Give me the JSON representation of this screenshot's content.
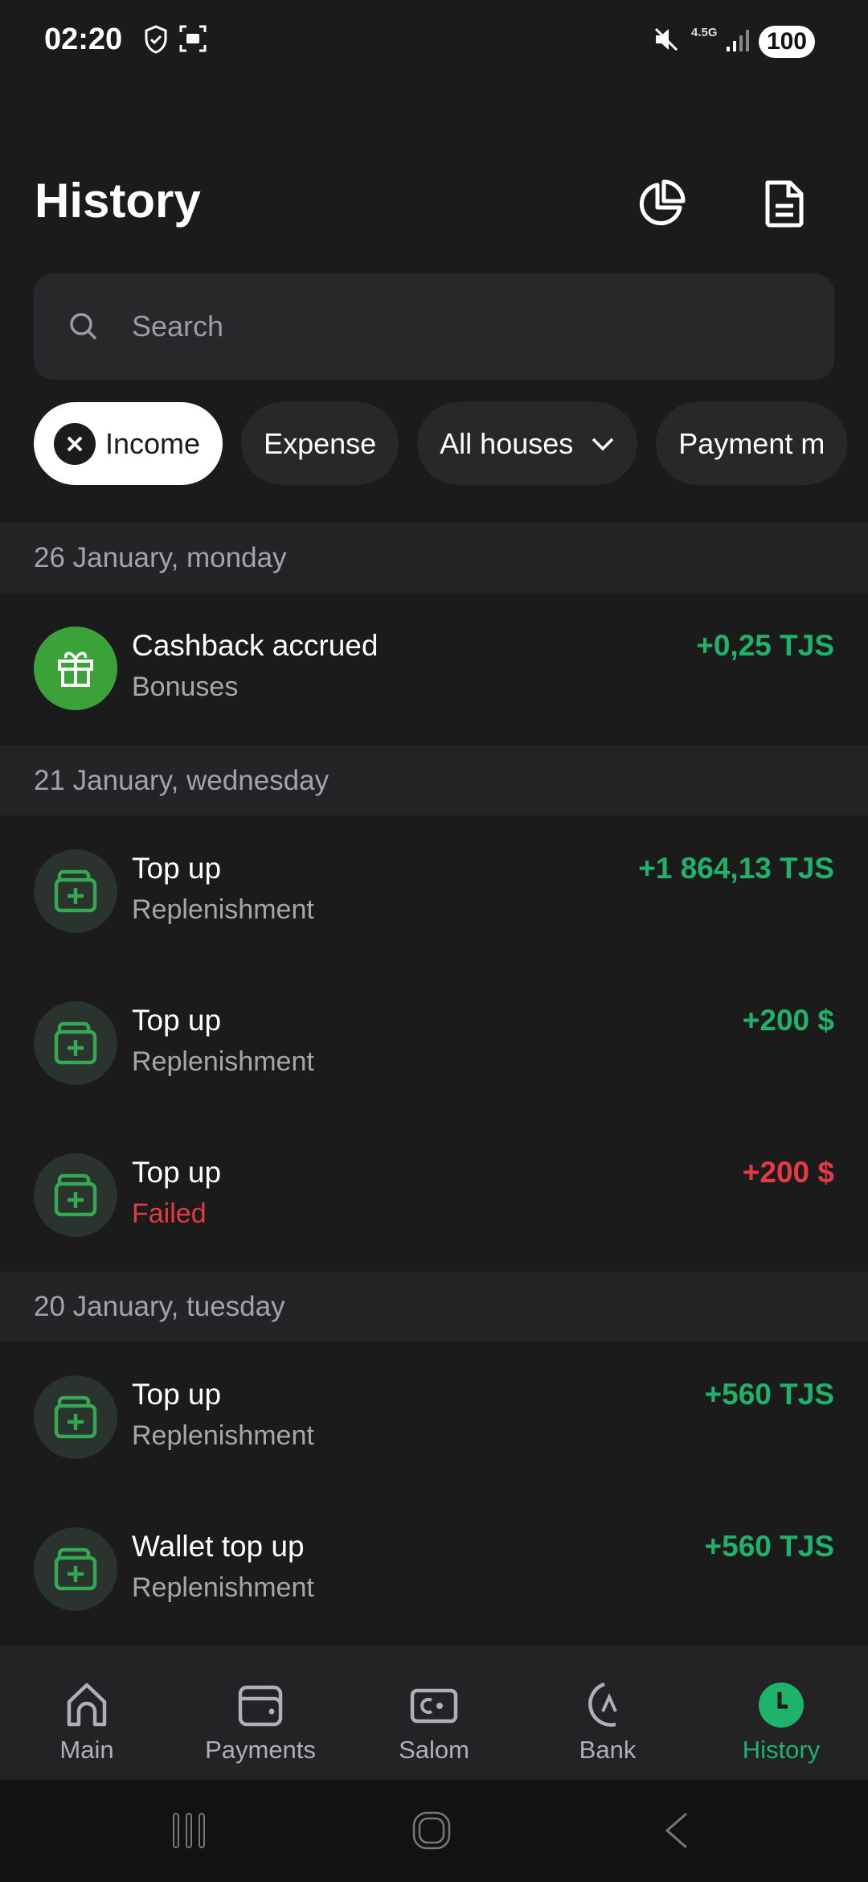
{
  "status": {
    "time": "02:20",
    "network": "4.5G",
    "battery": "100"
  },
  "header": {
    "title": "History",
    "icons": [
      "pie-chart-icon",
      "document-icon"
    ]
  },
  "search": {
    "placeholder": "Search"
  },
  "filters": [
    {
      "label": "Income",
      "active": true
    },
    {
      "label": "Expense"
    },
    {
      "label": "All houses"
    },
    {
      "label": "Payment m"
    }
  ],
  "groups": [
    {
      "date": "26 January, monday",
      "items": [
        {
          "title": "Cashback accrued",
          "subtitle": "Bonuses",
          "amount": "+0,25 TJS",
          "icon": "gift-icon",
          "status": "ok"
        }
      ]
    },
    {
      "date": "21 January, wednesday",
      "items": [
        {
          "title": "Top up",
          "subtitle": "Replenishment",
          "amount": "+1 864,13 TJS",
          "icon": "wallet-plus-icon",
          "status": "ok"
        },
        {
          "title": "Top up",
          "subtitle": "Replenishment",
          "amount": "+200 $",
          "icon": "wallet-plus-icon",
          "status": "ok"
        },
        {
          "title": "Top up",
          "subtitle": "Failed",
          "amount": "+200 $",
          "icon": "wallet-plus-icon",
          "status": "failed"
        }
      ]
    },
    {
      "date": "20 January, tuesday",
      "items": [
        {
          "title": "Top up",
          "subtitle": "Replenishment",
          "amount": "+560 TJS",
          "icon": "wallet-plus-icon",
          "status": "ok"
        },
        {
          "title": "Wallet top up",
          "subtitle": "Replenishment",
          "amount": "+560 TJS",
          "icon": "wallet-plus-icon",
          "status": "ok"
        }
      ]
    }
  ],
  "nav": [
    {
      "label": "Main"
    },
    {
      "label": "Payments"
    },
    {
      "label": "Salom"
    },
    {
      "label": "Bank"
    },
    {
      "label": "History",
      "active": true
    }
  ],
  "colors": {
    "positive": "#1eb26a",
    "negative": "#e43a43",
    "accent": "#1eb26a",
    "background": "#1b1b1c"
  }
}
